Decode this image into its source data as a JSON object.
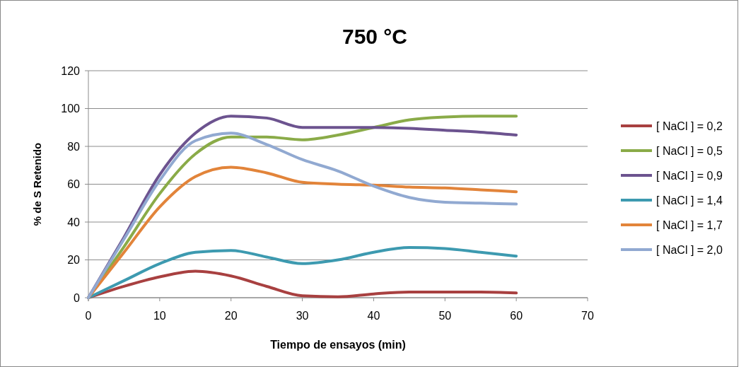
{
  "chart_data": {
    "type": "line",
    "title": "750 °C",
    "xlabel": "Tiempo de ensayos (min)",
    "ylabel": "% de S  Retenido",
    "x": [
      0,
      5,
      10,
      15,
      20,
      25,
      30,
      35,
      40,
      45,
      50,
      55,
      60
    ],
    "xlim": [
      0,
      70
    ],
    "xticks": [
      0,
      10,
      20,
      30,
      40,
      50,
      60,
      70
    ],
    "ylim": [
      0,
      120
    ],
    "yticks": [
      0,
      20,
      40,
      60,
      80,
      100,
      120
    ],
    "grid": "y",
    "legend": "right",
    "marker": "none",
    "line_style": "solid",
    "series": [
      {
        "name": "[ NaCl ] = 0,2",
        "color": "#a84040",
        "values": [
          0,
          6,
          11,
          14,
          11.5,
          6,
          1,
          0.5,
          2,
          3,
          3,
          3,
          2.5
        ]
      },
      {
        "name": "[ NaCl ] = 0,5",
        "color": "#8aab48",
        "values": [
          0,
          27,
          55,
          76,
          85,
          85,
          83.5,
          86,
          90,
          94,
          95.5,
          96,
          96
        ]
      },
      {
        "name": "[ NaCl ] = 0,9",
        "color": "#6c538f",
        "values": [
          0,
          32,
          65,
          87,
          96,
          95,
          90,
          90,
          90,
          89.5,
          88.5,
          87.5,
          86
        ]
      },
      {
        "name": "[ NaCl ] = 1,4",
        "color": "#3d9ab0",
        "values": [
          0,
          9,
          18,
          24,
          25,
          21.5,
          18,
          20,
          24,
          26.5,
          26,
          24,
          22
        ]
      },
      {
        "name": "[ NaCl ] = 1,7",
        "color": "#e2843a",
        "values": [
          0,
          24,
          48,
          64,
          69,
          66,
          61,
          60,
          59.5,
          58.5,
          58,
          57,
          56
        ]
      },
      {
        "name": "[ NaCl ] = 2,0",
        "color": "#91a9d1",
        "values": [
          0,
          31,
          62,
          83,
          87,
          81,
          73,
          67,
          59,
          53,
          50.5,
          50,
          49.5
        ]
      }
    ]
  }
}
